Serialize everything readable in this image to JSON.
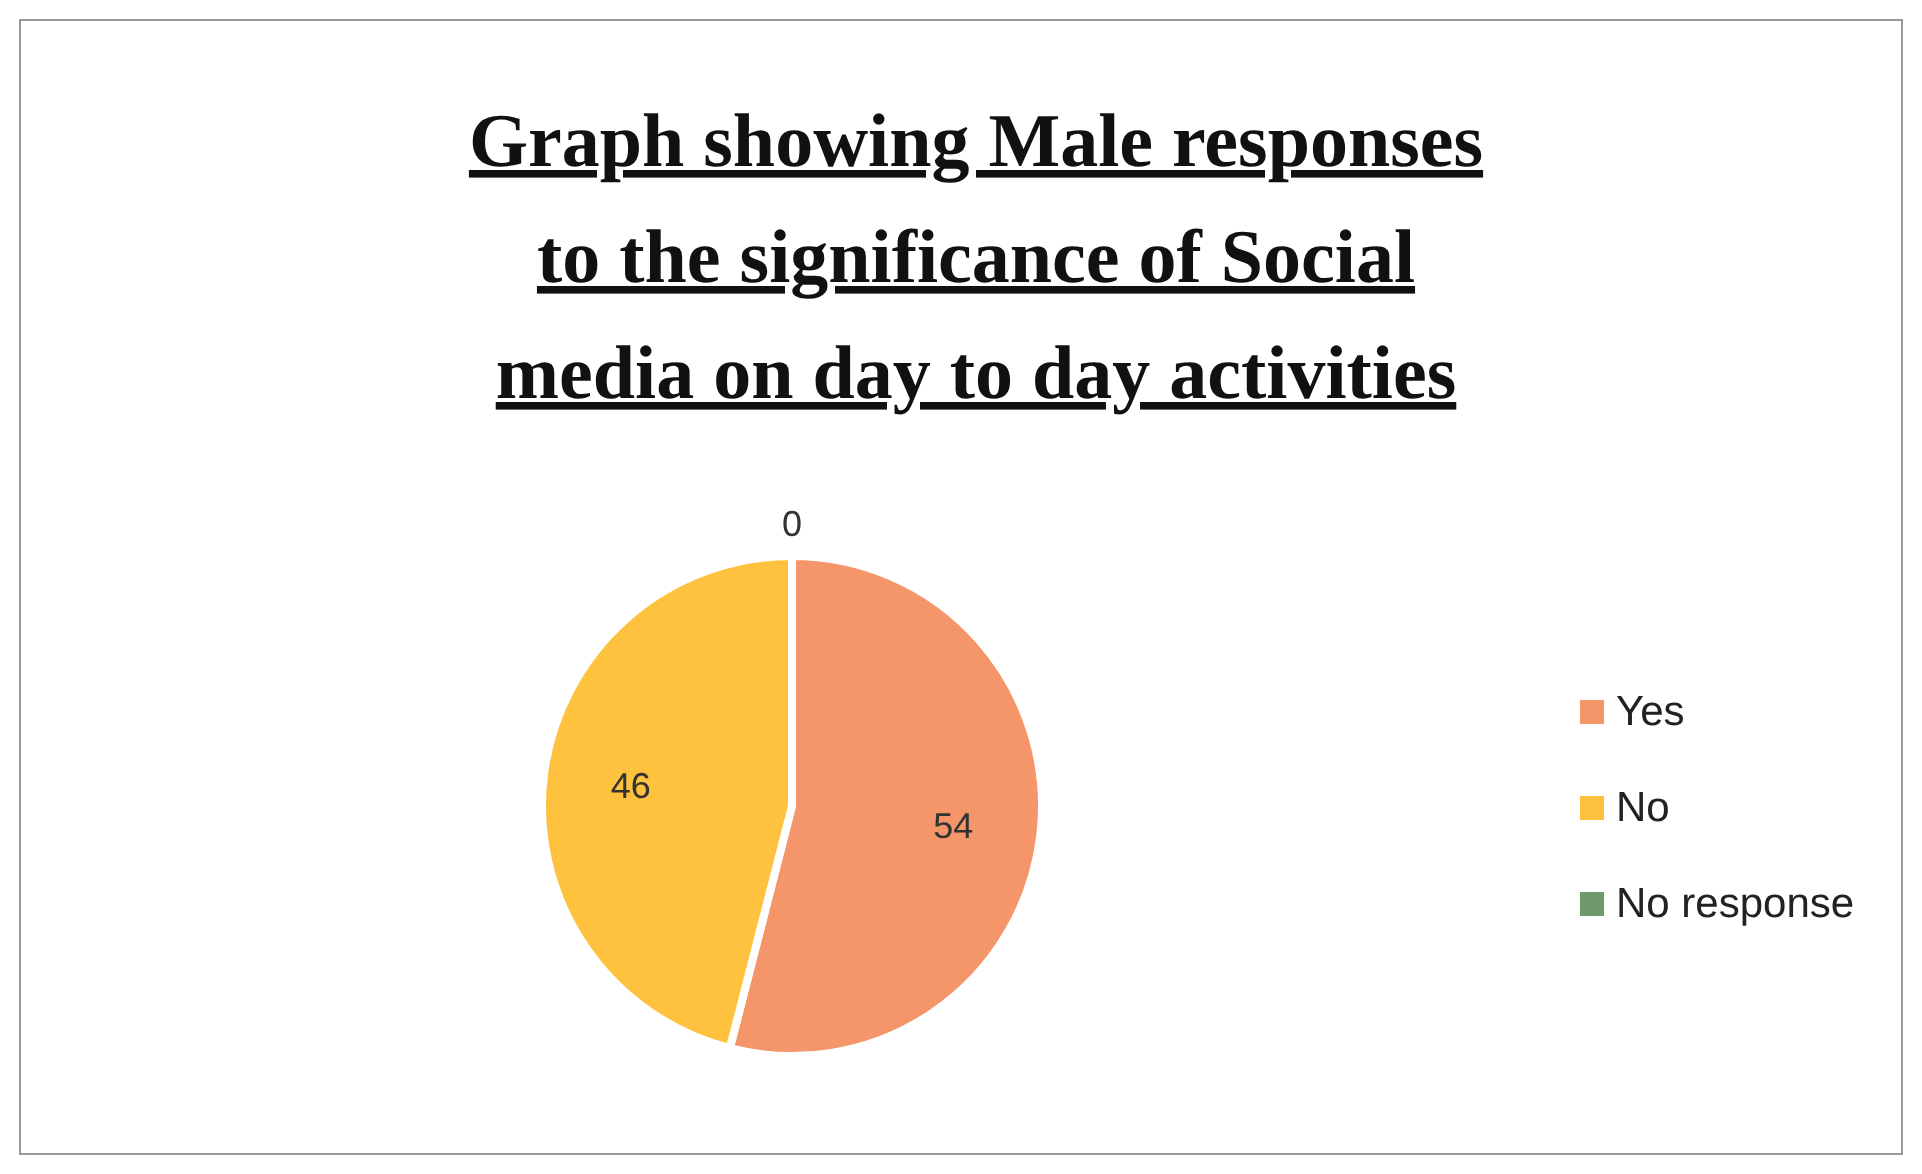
{
  "chart_data": {
    "type": "pie",
    "title": "Graph showing Male responses to the significance of Social media on day to day activities",
    "categories": [
      "Yes",
      "No",
      "No response"
    ],
    "values": [
      54,
      46,
      0
    ],
    "colors": [
      "#f4956a",
      "#ffc23f",
      "#6e9a6e"
    ],
    "value_labels": [
      "54",
      "46",
      "0"
    ],
    "legend": "right"
  }
}
